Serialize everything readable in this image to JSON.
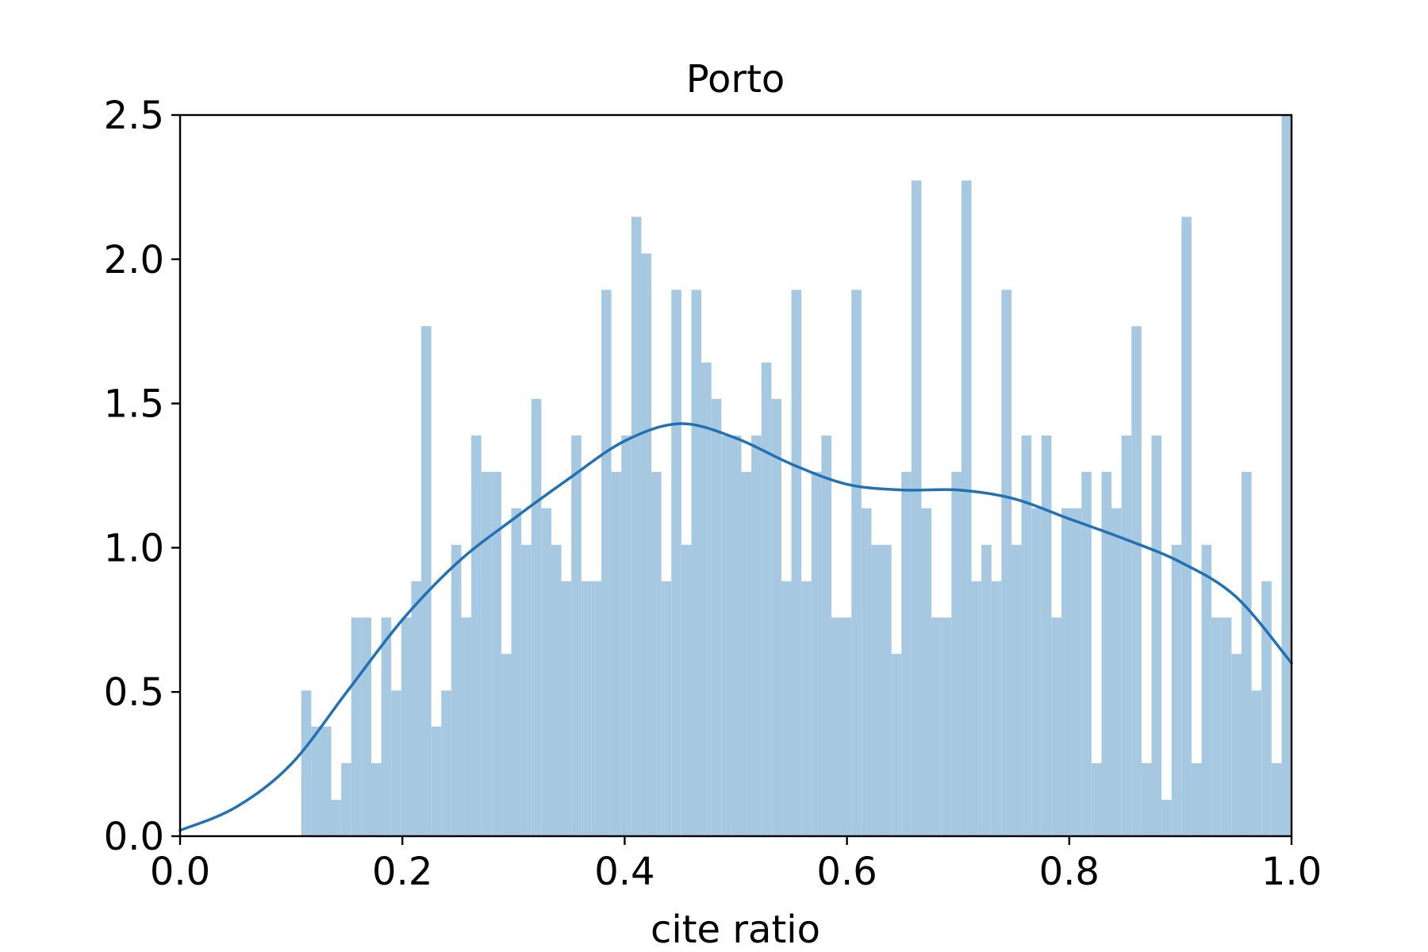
{
  "chart_data": {
    "type": "bar",
    "title": "Porto",
    "xlabel": "cite ratio",
    "ylabel": "",
    "xlim": [
      0.0,
      1.0
    ],
    "ylim": [
      0.0,
      2.5
    ],
    "xticks": [
      "0.0",
      "0.2",
      "0.4",
      "0.6",
      "0.8",
      "1.0"
    ],
    "yticks": [
      "0.0",
      "0.5",
      "1.0",
      "1.5",
      "2.0",
      "2.5"
    ],
    "grid": false,
    "colors": {
      "bars": "#a6c8e0",
      "kde": "#2271b5",
      "axes": "#000000"
    },
    "histogram": {
      "bin_start": 0.1,
      "bin_width": 0.009,
      "values": [
        0.0,
        0.505,
        0.38,
        0.38,
        0.126,
        0.253,
        0.758,
        0.758,
        0.253,
        0.758,
        0.505,
        0.758,
        0.884,
        1.768,
        0.38,
        0.505,
        1.01,
        0.758,
        1.389,
        1.263,
        1.263,
        0.632,
        1.137,
        1.01,
        1.516,
        1.137,
        1.01,
        0.884,
        1.389,
        0.884,
        0.884,
        1.894,
        1.263,
        1.389,
        2.147,
        2.02,
        1.263,
        0.884,
        1.894,
        1.01,
        1.894,
        1.642,
        1.516,
        1.389,
        1.389,
        1.263,
        1.389,
        1.642,
        1.516,
        0.884,
        1.894,
        0.884,
        1.263,
        1.389,
        0.758,
        0.758,
        1.894,
        1.137,
        1.01,
        1.01,
        0.632,
        1.263,
        2.273,
        1.137,
        0.758,
        0.758,
        1.263,
        2.273,
        0.884,
        1.01,
        0.884,
        1.894,
        1.01,
        1.389,
        1.137,
        1.389,
        0.758,
        1.137,
        1.137,
        1.263,
        0.253,
        1.263,
        1.137,
        1.389,
        1.768,
        0.253,
        1.389,
        0.126,
        1.01,
        2.147,
        0.253,
        1.01,
        0.758,
        0.758,
        0.632,
        1.263,
        0.505,
        0.884,
        0.253,
        2.5
      ]
    },
    "kde": {
      "x": [
        0.0,
        0.05,
        0.1,
        0.15,
        0.2,
        0.25,
        0.3,
        0.35,
        0.4,
        0.45,
        0.5,
        0.55,
        0.6,
        0.65,
        0.7,
        0.75,
        0.8,
        0.85,
        0.9,
        0.95,
        1.0
      ],
      "y": [
        0.02,
        0.1,
        0.25,
        0.5,
        0.75,
        0.95,
        1.1,
        1.24,
        1.37,
        1.43,
        1.38,
        1.29,
        1.22,
        1.2,
        1.2,
        1.17,
        1.1,
        1.03,
        0.95,
        0.83,
        0.6
      ]
    }
  }
}
